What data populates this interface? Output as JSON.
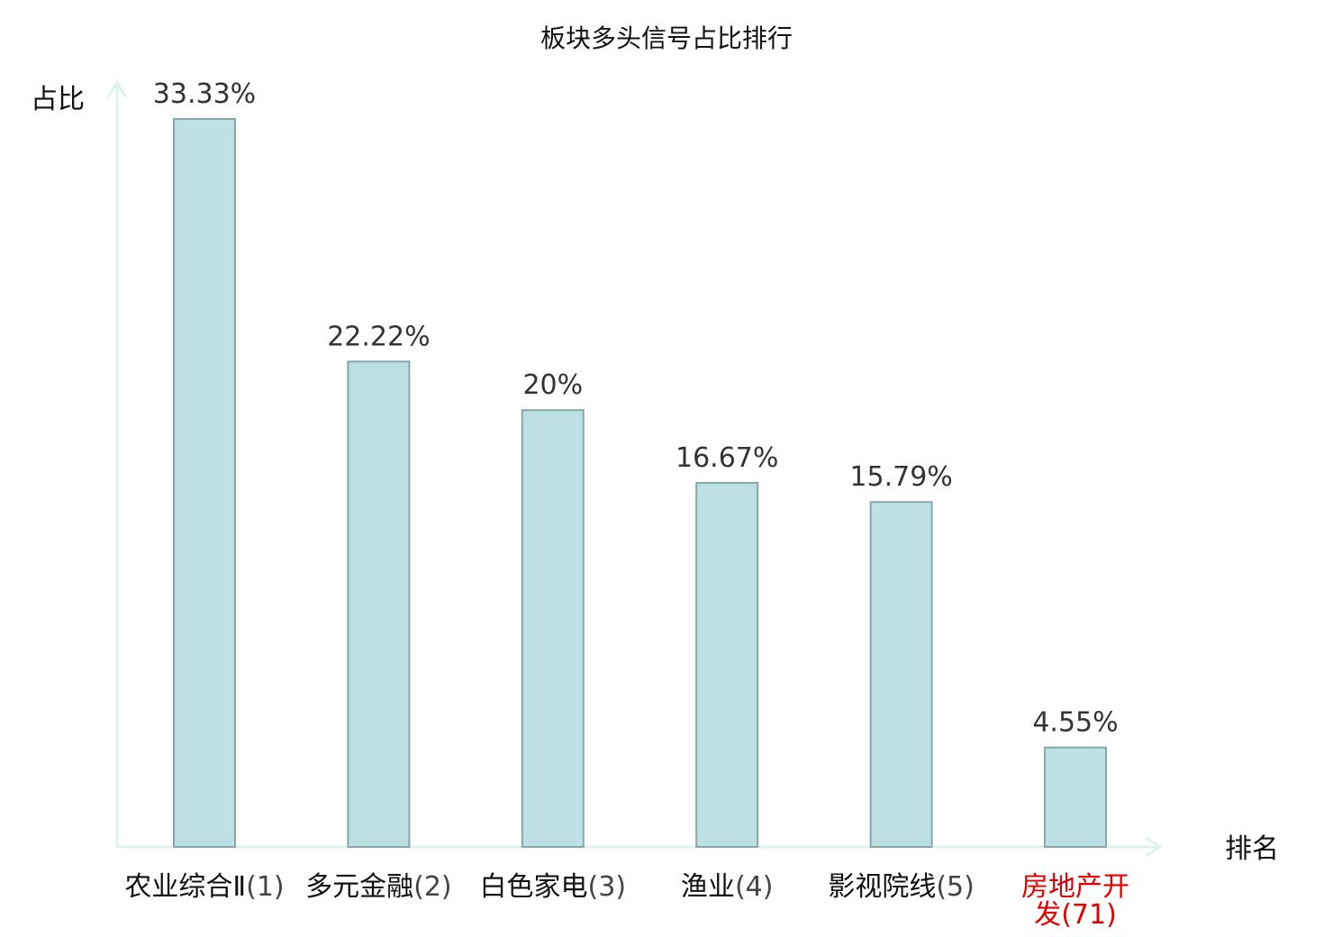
{
  "chart_data": {
    "type": "bar",
    "title": "板块多头信号占比排行",
    "ylabel": "占比",
    "xlabel": "排名",
    "categories": [
      {
        "name": "农业综合Ⅱ",
        "rank": "(1)",
        "highlight": false
      },
      {
        "name": "多元金融",
        "rank": "(2)",
        "highlight": false
      },
      {
        "name": "白色家电",
        "rank": "(3)",
        "highlight": false
      },
      {
        "name": "渔业",
        "rank": "(4)",
        "highlight": false
      },
      {
        "name": "影视院线",
        "rank": "(5)",
        "highlight": false
      },
      {
        "name": "房地产开发",
        "rank": "(71)",
        "highlight": true
      }
    ],
    "values": [
      33.33,
      22.22,
      20,
      16.67,
      15.79,
      4.55
    ],
    "value_labels": [
      "33.33%",
      "22.22%",
      "20%",
      "16.67%",
      "15.79%",
      "4.55%"
    ],
    "ylim": [
      0,
      35
    ],
    "grid": false,
    "colors": {
      "bar_fill": "#bce0e3",
      "bar_stroke": "#86a8aa",
      "axis": "#e0f2f0",
      "highlight_text": "#e00000",
      "normal_text": "#111111",
      "rank_text": "#444444"
    }
  }
}
